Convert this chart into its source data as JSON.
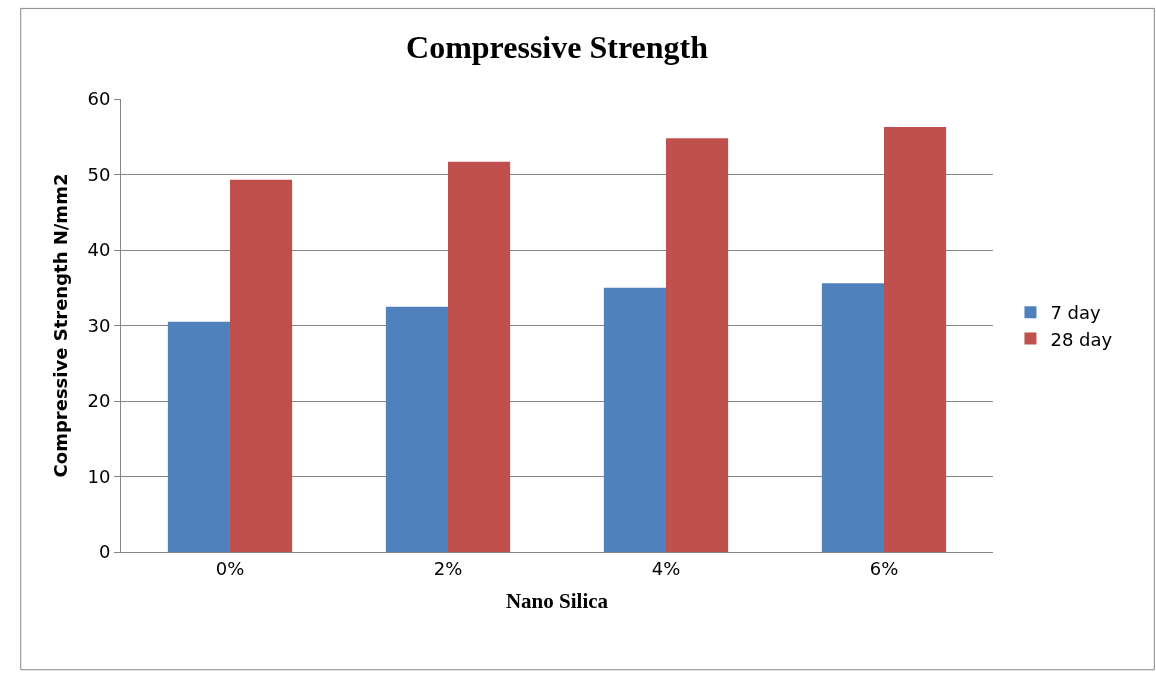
{
  "chart_data": {
    "type": "bar",
    "title": "Compressive Strength",
    "xlabel": "Nano Silica",
    "ylabel": "Compressive Strength N/mm2",
    "categories": [
      "0%",
      "2%",
      "4%",
      "6%"
    ],
    "series": [
      {
        "name": "7 day",
        "color": "#4f81bd",
        "values": [
          30.5,
          32.5,
          35.0,
          35.6
        ]
      },
      {
        "name": "28 day",
        "color": "#c0504d",
        "values": [
          49.3,
          51.7,
          54.8,
          56.3
        ]
      }
    ],
    "ylim": [
      0,
      60
    ],
    "yticks": [
      0,
      10,
      20,
      30,
      40,
      50,
      60
    ],
    "grid": "y",
    "legend": "right"
  }
}
